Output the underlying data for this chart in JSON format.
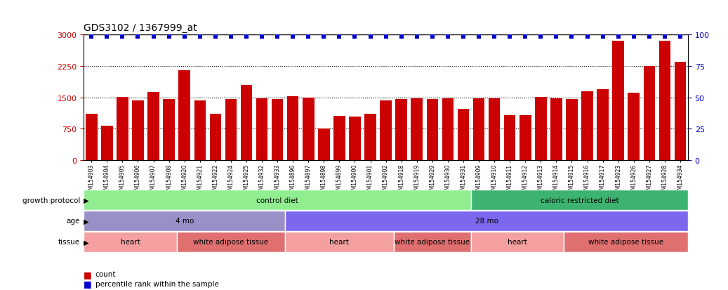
{
  "title": "GDS3102 / 1367999_at",
  "samples": [
    "GSM154903",
    "GSM154904",
    "GSM154905",
    "GSM154906",
    "GSM154907",
    "GSM154908",
    "GSM154920",
    "GSM154921",
    "GSM154922",
    "GSM154924",
    "GSM154925",
    "GSM154932",
    "GSM154933",
    "GSM154896",
    "GSM154897",
    "GSM154898",
    "GSM154899",
    "GSM154900",
    "GSM154901",
    "GSM154902",
    "GSM154918",
    "GSM154919",
    "GSM154929",
    "GSM154930",
    "GSM154931",
    "GSM154909",
    "GSM154910",
    "GSM154911",
    "GSM154912",
    "GSM154913",
    "GSM154914",
    "GSM154915",
    "GSM154916",
    "GSM154917",
    "GSM154923",
    "GSM154926",
    "GSM154927",
    "GSM154928",
    "GSM154934"
  ],
  "counts": [
    1100,
    830,
    1510,
    1430,
    1630,
    1460,
    2150,
    1420,
    1100,
    1460,
    1800,
    1480,
    1460,
    1530,
    1500,
    760,
    1050,
    1040,
    1100,
    1420,
    1460,
    1470,
    1460,
    1480,
    1220,
    1470,
    1470,
    1070,
    1070,
    1510,
    1480,
    1460,
    1650,
    1690,
    2850,
    1610,
    2250,
    2850,
    2350
  ],
  "bar_color": "#cc0000",
  "percentile_color": "#0000cc",
  "ylim_left": [
    0,
    3000
  ],
  "yticks_left": [
    0,
    750,
    1500,
    2250,
    3000
  ],
  "ylim_right": [
    0,
    100
  ],
  "yticks_right": [
    0,
    25,
    50,
    75,
    100
  ],
  "hline_values": [
    750,
    1500,
    2250
  ],
  "growth_protocol_spans": [
    {
      "label": "control diet",
      "start": 0,
      "end": 25,
      "color": "#90ee90"
    },
    {
      "label": "caloric restricted diet",
      "start": 25,
      "end": 39,
      "color": "#3cb371"
    }
  ],
  "age_spans": [
    {
      "label": "4 mo",
      "start": 0,
      "end": 13,
      "color": "#9b8fc8"
    },
    {
      "label": "28 mo",
      "start": 13,
      "end": 39,
      "color": "#7b68ee"
    }
  ],
  "tissue_spans": [
    {
      "label": "heart",
      "start": 0,
      "end": 6,
      "color": "#f4a0a0"
    },
    {
      "label": "white adipose tissue",
      "start": 6,
      "end": 13,
      "color": "#e07070"
    },
    {
      "label": "heart",
      "start": 13,
      "end": 20,
      "color": "#f4a0a0"
    },
    {
      "label": "white adipose tissue",
      "start": 20,
      "end": 25,
      "color": "#e07070"
    },
    {
      "label": "heart",
      "start": 25,
      "end": 31,
      "color": "#f4a0a0"
    },
    {
      "label": "white adipose tissue",
      "start": 31,
      "end": 39,
      "color": "#e07070"
    }
  ],
  "row_labels": [
    "growth protocol",
    "age",
    "tissue"
  ],
  "legend_items": [
    {
      "color": "#cc0000",
      "label": "count"
    },
    {
      "color": "#0000cc",
      "label": "percentile rank within the sample"
    }
  ],
  "bg_color": "#d8d8d8",
  "plot_bg": "#ffffff"
}
